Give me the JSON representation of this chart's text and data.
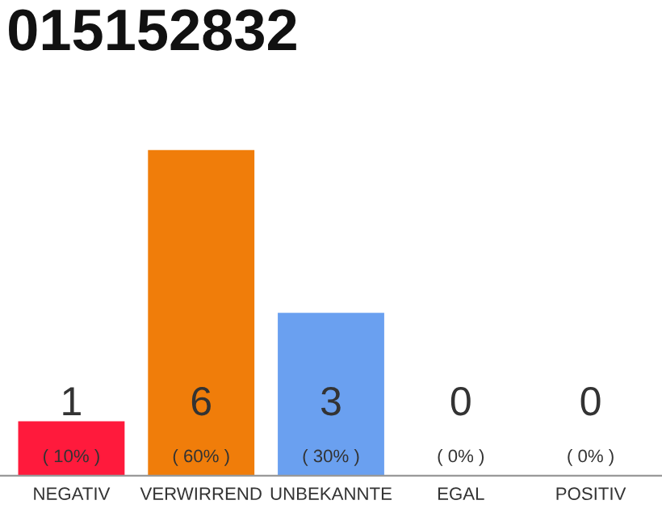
{
  "chart_data": {
    "type": "bar",
    "title": "015152832",
    "categories": [
      "NEGATIV",
      "VERWIRREND",
      "UNBEKANNTE",
      "EGAL",
      "POSITIV"
    ],
    "values": [
      1,
      6,
      3,
      0,
      0
    ],
    "colors": [
      "#ff1a3c",
      "#f07d0a",
      "#6aa0f0",
      "#d0d0d0",
      "#d0d0d0"
    ],
    "value_labels": [
      "1\n( 10% )",
      "6\n( 60% )",
      "3\n( 30% )",
      "0\n( 0% )",
      "0\n( 0% )"
    ],
    "grid": false,
    "legend": false
  }
}
